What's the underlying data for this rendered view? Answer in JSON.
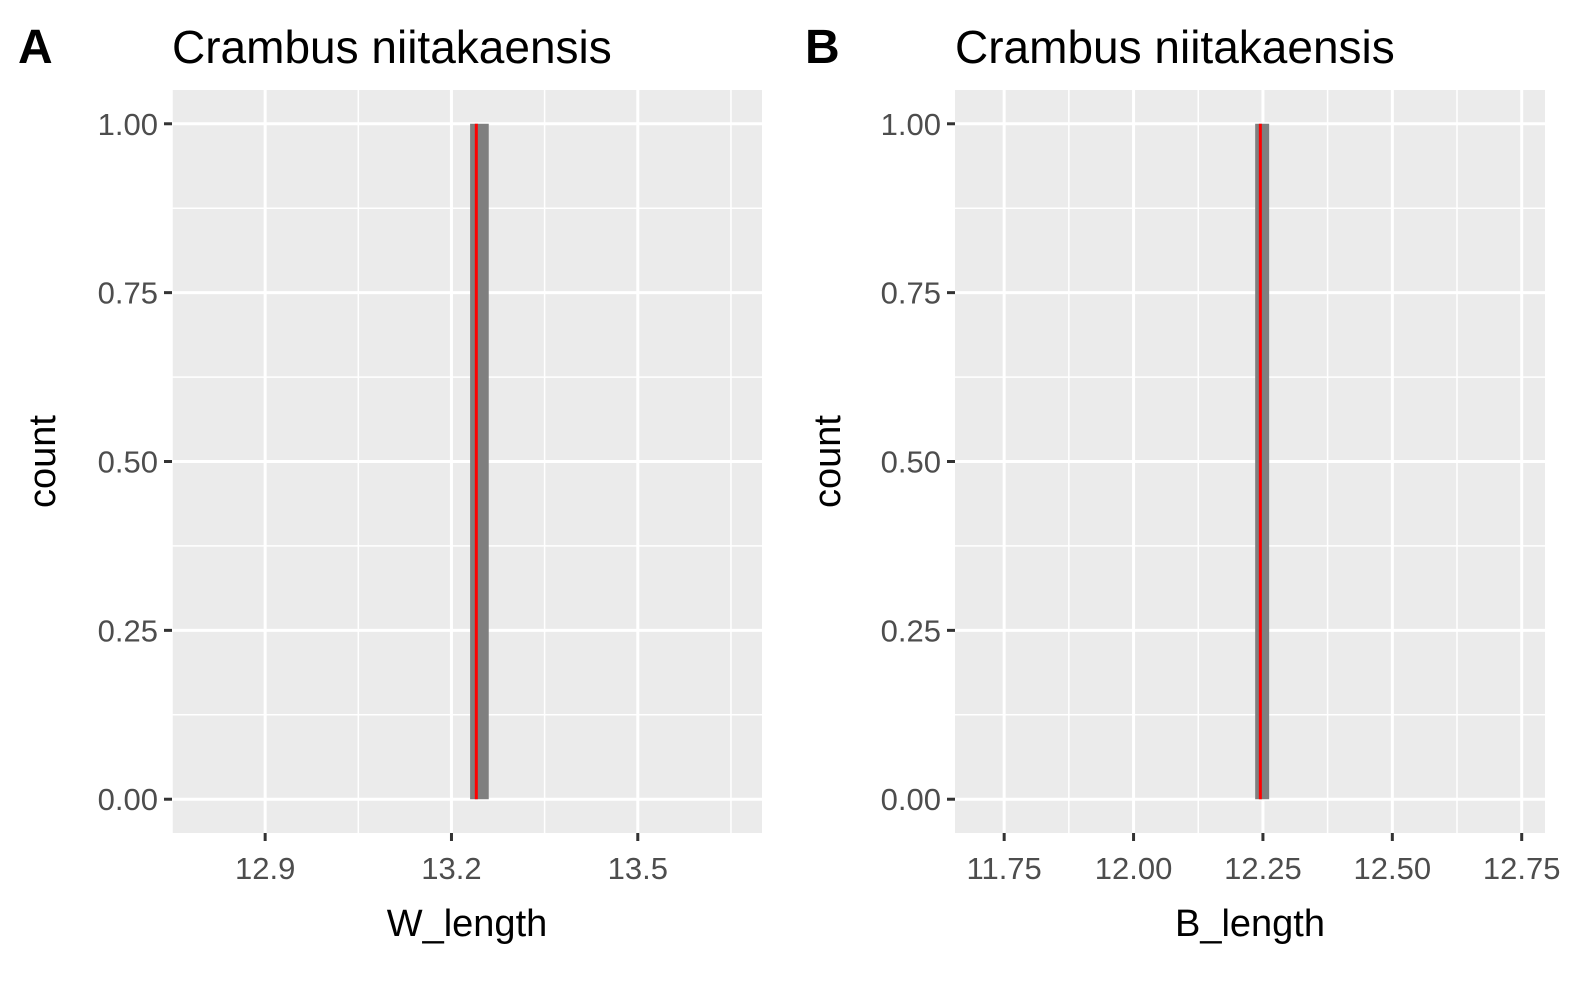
{
  "chart_data": [
    {
      "type": "bar",
      "panel_tag": "A",
      "title": "Crambus niitakaensis",
      "xlabel": "W_length",
      "ylabel": "count",
      "xlim": [
        12.75,
        13.7
      ],
      "ylim": [
        -0.05,
        1.05
      ],
      "x_ticks": [
        12.9,
        13.2,
        13.5
      ],
      "x_tick_labels": [
        "12.9",
        "13.2",
        "13.5"
      ],
      "x_minor_ticks": [
        12.75,
        13.05,
        13.35,
        13.65
      ],
      "y_ticks": [
        0,
        0.25,
        0.5,
        0.75,
        1
      ],
      "y_tick_labels": [
        "0.00",
        "0.25",
        "0.50",
        "0.75",
        "1.00"
      ],
      "bars": [
        {
          "x_min": 13.23,
          "x_max": 13.26,
          "count": 1
        }
      ],
      "bar_color": "#7f7f7f",
      "reference_line": {
        "x": 13.24,
        "ymin": 0,
        "ymax": 1,
        "color": "#ff0000"
      },
      "grid": true,
      "panel_background": "#ebebeb"
    },
    {
      "type": "bar",
      "panel_tag": "B",
      "title": "Crambus niitakaensis",
      "xlabel": "B_length",
      "ylabel": "count",
      "xlim": [
        11.655,
        12.795
      ],
      "ylim": [
        -0.05,
        1.05
      ],
      "x_ticks": [
        11.75,
        12.0,
        12.25,
        12.5,
        12.75
      ],
      "x_tick_labels": [
        "11.75",
        "12.00",
        "12.25",
        "12.50",
        "12.75"
      ],
      "x_minor_ticks": [
        11.875,
        12.125,
        12.375,
        12.625
      ],
      "y_ticks": [
        0,
        0.25,
        0.5,
        0.75,
        1
      ],
      "y_tick_labels": [
        "0.00",
        "0.25",
        "0.50",
        "0.75",
        "1.00"
      ],
      "bars": [
        {
          "x_min": 12.235,
          "x_max": 12.262,
          "count": 1
        }
      ],
      "bar_color": "#7f7f7f",
      "reference_line": {
        "x": 12.245,
        "ymin": 0,
        "ymax": 1,
        "color": "#ff0000"
      },
      "grid": true,
      "panel_background": "#ebebeb"
    }
  ]
}
